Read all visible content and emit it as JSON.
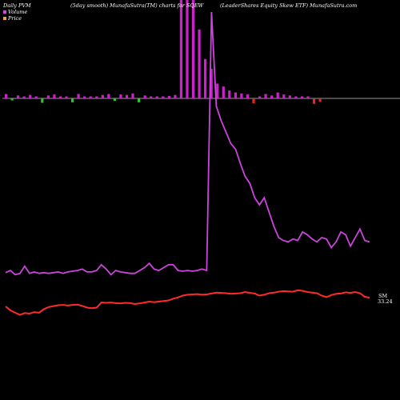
{
  "header": {
    "left": "Daily PVM",
    "center": "(5day smooth) MunafaSutra(TM) charts for SQEW",
    "right": "(LeaderShares Equity Skew ETF) MunafaSutra.com"
  },
  "legend": [
    {
      "label": "Volume",
      "color": "#e040e0"
    },
    {
      "label": "Price",
      "color": "#f0a040"
    }
  ],
  "colors": {
    "price_line": "#ff2a2a",
    "volume_line": "#cc44dd",
    "bar_up": "#cc22cc",
    "bar_down": "#22cc22",
    "bar_red": "#ee2222",
    "baseline": "#cccccc"
  },
  "chart_data": {
    "type": "line",
    "title": "",
    "xlabel": "",
    "ylabel": "",
    "last_labels": [
      "SM",
      "33.24"
    ],
    "x": [
      1,
      2,
      3,
      4,
      5,
      6,
      7,
      8,
      9,
      10,
      11,
      12,
      13,
      14,
      15,
      16,
      17,
      18,
      19,
      20,
      21,
      22,
      23,
      24,
      25,
      26,
      27,
      28,
      29,
      30,
      31,
      32,
      33,
      34,
      35,
      36,
      37,
      38,
      39,
      40,
      41,
      42,
      43,
      44,
      45,
      46,
      47,
      48,
      49,
      50,
      51,
      52,
      53,
      54,
      55,
      56,
      57,
      58,
      59,
      60,
      61,
      62,
      63,
      64,
      65,
      66,
      67,
      68,
      69,
      70,
      71,
      72,
      73,
      74,
      75,
      76,
      77
    ],
    "series": [
      {
        "name": "Price",
        "values": [
          30.4,
          29.1,
          28.3,
          27.6,
          28.2,
          28.0,
          28.5,
          28.3,
          29.5,
          30.2,
          30.5,
          30.8,
          30.9,
          30.7,
          30.9,
          31.0,
          30.6,
          30.0,
          29.8,
          30.0,
          31.7,
          31.6,
          31.7,
          31.5,
          31.4,
          31.6,
          31.5,
          31.2,
          31.4,
          31.7,
          32.0,
          31.8,
          32.0,
          32.2,
          32.4,
          33.0,
          33.4,
          34.0,
          34.3,
          34.4,
          34.5,
          34.3,
          34.4,
          34.7,
          35.0,
          34.9,
          34.8,
          34.6,
          34.7,
          34.8,
          35.2,
          34.9,
          34.7,
          34.0,
          34.3,
          34.8,
          35.0,
          35.3,
          35.5,
          35.4,
          35.3,
          35.8,
          35.6,
          35.2,
          35.0,
          34.8,
          34.0,
          33.5,
          34.2,
          34.6,
          34.7,
          35.1,
          34.9,
          35.2,
          34.8,
          33.6,
          33.3
        ]
      },
      {
        "name": "Volume",
        "values": [
          35,
          38,
          32,
          34,
          44,
          34,
          36,
          34,
          35,
          34,
          35,
          36,
          34,
          36,
          37,
          38,
          40,
          36,
          36,
          38,
          46,
          40,
          32,
          38,
          36,
          35,
          34,
          34,
          38,
          42,
          48,
          40,
          38,
          42,
          46,
          46,
          38,
          37,
          38,
          37,
          38,
          40,
          38,
          400,
          268,
          248,
          232,
          216,
          208,
          188,
          170,
          160,
          140,
          130,
          140,
          120,
          100,
          84,
          80,
          78,
          82,
          80,
          92,
          88,
          82,
          78,
          84,
          82,
          70,
          78,
          92,
          88,
          72,
          84,
          96,
          80,
          78
        ]
      }
    ],
    "volume_bars": [
      {
        "height": 4.5,
        "color": "up"
      },
      {
        "height": -2,
        "color": "down"
      },
      {
        "height": 3,
        "color": "up"
      },
      {
        "height": 2,
        "color": "up"
      },
      {
        "height": 3.5,
        "color": "up"
      },
      {
        "height": 2,
        "color": "up"
      },
      {
        "height": -4.5,
        "color": "down"
      },
      {
        "height": 3,
        "color": "up"
      },
      {
        "height": 4,
        "color": "up"
      },
      {
        "height": 2,
        "color": "up"
      },
      {
        "height": 2,
        "color": "up"
      },
      {
        "height": -4,
        "color": "down"
      },
      {
        "height": 4.5,
        "color": "up"
      },
      {
        "height": 2,
        "color": "up"
      },
      {
        "height": 2,
        "color": "up"
      },
      {
        "height": 2,
        "color": "up"
      },
      {
        "height": 3.5,
        "color": "up"
      },
      {
        "height": 4.5,
        "color": "up"
      },
      {
        "height": -2.5,
        "color": "down"
      },
      {
        "height": 4,
        "color": "up"
      },
      {
        "height": 3.5,
        "color": "up"
      },
      {
        "height": 5,
        "color": "up"
      },
      {
        "height": -4,
        "color": "down"
      },
      {
        "height": 3,
        "color": "up"
      },
      {
        "height": 2,
        "color": "up"
      },
      {
        "height": 2,
        "color": "up"
      },
      {
        "height": 2,
        "color": "up"
      },
      {
        "height": 2.5,
        "color": "up"
      },
      {
        "height": 3.5,
        "color": "up"
      },
      {
        "height": 100,
        "color": "up"
      },
      {
        "height": 100,
        "color": "up"
      },
      {
        "height": 100,
        "color": "up"
      },
      {
        "height": 70,
        "color": "up"
      },
      {
        "height": 40,
        "color": "up"
      },
      {
        "height": 30,
        "color": "up"
      },
      {
        "height": 15,
        "color": "up"
      },
      {
        "height": 12,
        "color": "up"
      },
      {
        "height": 8,
        "color": "up"
      },
      {
        "height": 6,
        "color": "up"
      },
      {
        "height": 5,
        "color": "up"
      },
      {
        "height": 4,
        "color": "up"
      },
      {
        "height": -5,
        "color": "red"
      },
      {
        "height": 2,
        "color": "up"
      },
      {
        "height": 4.5,
        "color": "up"
      },
      {
        "height": 3,
        "color": "up"
      },
      {
        "height": 6,
        "color": "up"
      },
      {
        "height": 4,
        "color": "up"
      },
      {
        "height": 3,
        "color": "up"
      },
      {
        "height": 2,
        "color": "up"
      },
      {
        "height": 2,
        "color": "up"
      },
      {
        "height": 2,
        "color": "up"
      },
      {
        "height": -5.5,
        "color": "red"
      },
      {
        "height": -3.5,
        "color": "red"
      }
    ]
  }
}
